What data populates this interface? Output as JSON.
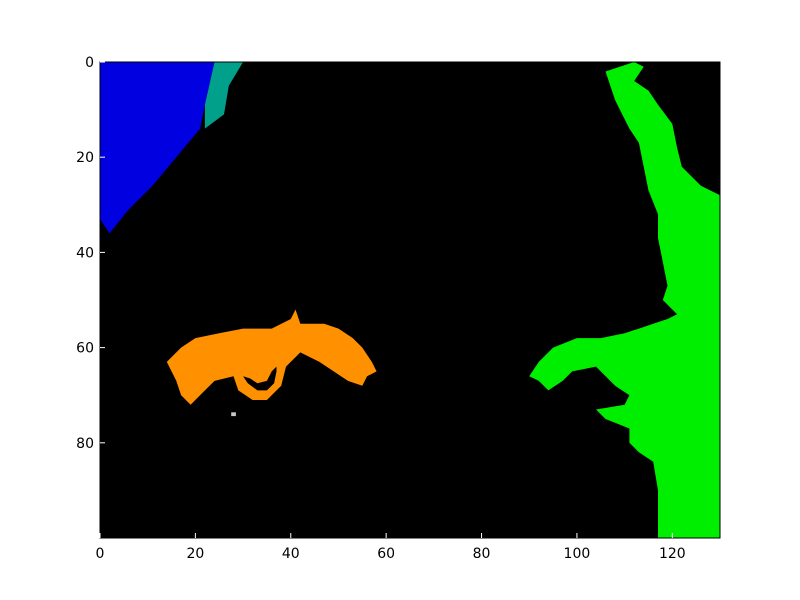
{
  "chart_data": {
    "type": "heatmap",
    "title": "",
    "xlabel": "",
    "ylabel": "",
    "xlim": [
      0,
      130
    ],
    "ylim": [
      100,
      0
    ],
    "x_ticks": [
      "0",
      "20",
      "40",
      "60",
      "80",
      "100",
      "120"
    ],
    "y_ticks": [
      "0",
      "20",
      "40",
      "60",
      "80"
    ],
    "x_tick_values": [
      0,
      20,
      40,
      60,
      80,
      100,
      120
    ],
    "y_tick_values": [
      0,
      20,
      40,
      60,
      80
    ],
    "grid": false,
    "background_color": "#000000",
    "regions": [
      {
        "label": "blue",
        "color": "#0000e0",
        "points": [
          [
            0,
            0
          ],
          [
            24,
            0
          ],
          [
            22,
            9
          ],
          [
            21,
            14
          ],
          [
            16,
            20
          ],
          [
            11,
            26
          ],
          [
            6,
            31
          ],
          [
            2,
            36
          ],
          [
            0,
            33
          ]
        ]
      },
      {
        "label": "teal",
        "color": "#00a08a",
        "points": [
          [
            24,
            0
          ],
          [
            30,
            0
          ],
          [
            27,
            5
          ],
          [
            26,
            11
          ],
          [
            22,
            14
          ],
          [
            22,
            9
          ]
        ]
      },
      {
        "label": "orange",
        "color": "#ff9000",
        "points": [
          [
            14,
            63
          ],
          [
            17,
            60
          ],
          [
            20,
            58
          ],
          [
            25,
            57
          ],
          [
            30,
            56
          ],
          [
            36,
            56
          ],
          [
            40,
            54
          ],
          [
            41,
            52
          ],
          [
            42,
            55
          ],
          [
            47,
            55
          ],
          [
            50,
            56
          ],
          [
            53,
            58
          ],
          [
            55,
            60
          ],
          [
            57,
            63
          ],
          [
            58,
            65
          ],
          [
            56,
            66
          ],
          [
            55,
            68
          ],
          [
            52,
            67
          ],
          [
            49,
            65
          ],
          [
            46,
            63
          ],
          [
            42,
            61
          ],
          [
            39,
            64
          ],
          [
            38,
            68
          ],
          [
            35,
            71
          ],
          [
            32,
            71
          ],
          [
            29,
            69
          ],
          [
            28,
            66
          ],
          [
            24,
            67
          ],
          [
            22,
            69
          ],
          [
            19,
            72
          ],
          [
            17,
            70
          ],
          [
            16,
            67
          ]
        ]
      },
      {
        "label": "green",
        "color": "#00ee00",
        "points": [
          [
            109,
            1
          ],
          [
            112,
            0
          ],
          [
            114,
            1
          ],
          [
            112,
            4
          ],
          [
            115,
            6
          ],
          [
            117,
            9
          ],
          [
            120,
            13
          ],
          [
            121,
            18
          ],
          [
            122,
            22
          ],
          [
            126,
            26
          ],
          [
            130,
            28
          ],
          [
            130,
            100
          ],
          [
            117,
            100
          ],
          [
            117,
            95
          ],
          [
            117,
            90
          ],
          [
            116,
            84
          ],
          [
            113,
            82
          ],
          [
            111,
            80
          ],
          [
            111,
            77
          ],
          [
            106,
            75
          ],
          [
            104,
            73
          ],
          [
            110,
            72
          ],
          [
            111,
            70
          ],
          [
            108,
            68
          ],
          [
            104,
            64
          ],
          [
            99,
            65
          ],
          [
            97,
            67
          ],
          [
            94,
            69
          ],
          [
            92,
            67
          ],
          [
            90,
            66
          ],
          [
            92,
            63
          ],
          [
            95,
            60
          ],
          [
            100,
            58
          ],
          [
            105,
            58
          ],
          [
            110,
            57
          ],
          [
            113,
            56
          ],
          [
            116,
            55
          ],
          [
            119,
            54
          ],
          [
            121,
            53
          ],
          [
            118,
            50
          ],
          [
            119,
            47
          ],
          [
            118,
            42
          ],
          [
            117,
            37
          ],
          [
            117,
            32
          ],
          [
            115,
            27
          ],
          [
            114,
            22
          ],
          [
            113,
            17
          ],
          [
            111,
            14
          ],
          [
            110,
            12
          ],
          [
            108,
            8
          ],
          [
            107,
            5
          ],
          [
            106,
            2
          ]
        ]
      },
      {
        "label": "dot",
        "color": "#c8c8c8",
        "points": [
          [
            27.5,
            73.6
          ],
          [
            28.5,
            73.6
          ],
          [
            28.5,
            74.4
          ],
          [
            27.5,
            74.4
          ]
        ]
      }
    ],
    "holes": [
      {
        "points": [
          [
            30,
            66
          ],
          [
            31,
            67.5
          ],
          [
            33,
            69
          ],
          [
            35,
            69
          ],
          [
            36.5,
            67.5
          ],
          [
            37,
            65
          ],
          [
            37,
            64
          ],
          [
            36,
            65
          ],
          [
            35,
            67
          ],
          [
            33,
            67.5
          ],
          [
            31.5,
            66.5
          ]
        ]
      }
    ]
  }
}
